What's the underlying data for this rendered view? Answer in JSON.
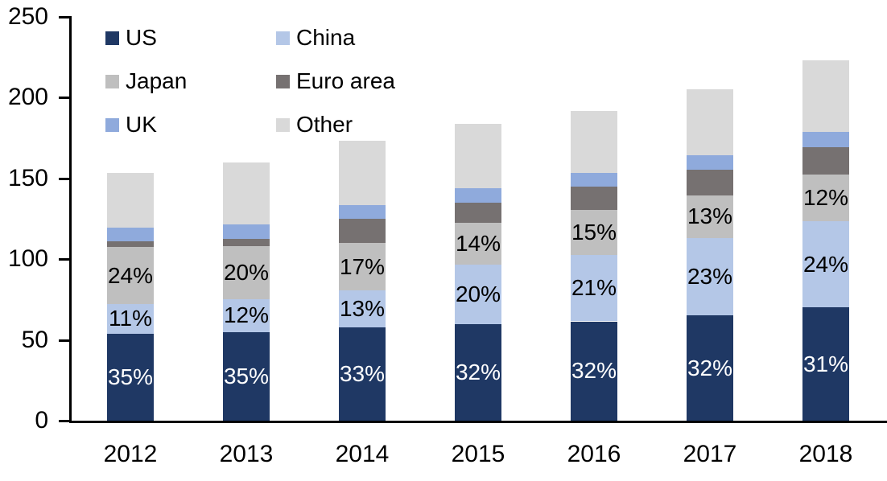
{
  "chart_data": {
    "type": "bar",
    "stacked": true,
    "title": "",
    "xlabel": "",
    "ylabel": "",
    "categories": [
      "2012",
      "2013",
      "2014",
      "2015",
      "2016",
      "2017",
      "2018"
    ],
    "series": [
      {
        "name": "US",
        "color": "#1f3864",
        "values": [
          54,
          55,
          58,
          60,
          61.5,
          65,
          70
        ],
        "labels": [
          "35%",
          "35%",
          "33%",
          "32%",
          "32%",
          "32%",
          "31%"
        ],
        "label_color": "#ffffff"
      },
      {
        "name": "China",
        "color": "#b4c7e7",
        "values": [
          18,
          20,
          22.5,
          36.5,
          41,
          48,
          53.5
        ],
        "labels": [
          "11%",
          "12%",
          "13%",
          "20%",
          "21%",
          "23%",
          "24%"
        ],
        "label_color": "#000000"
      },
      {
        "name": "Japan",
        "color": "#bfbfbf",
        "values": [
          35.5,
          33,
          29.5,
          26,
          28,
          26.5,
          29
        ],
        "labels": [
          "24%",
          "20%",
          "17%",
          "14%",
          "15%",
          "13%",
          "12%"
        ],
        "label_color": "#000000"
      },
      {
        "name": "Euro area",
        "color": "#767171",
        "values": [
          3.5,
          4.5,
          15,
          12.5,
          14.5,
          16,
          17
        ],
        "labels": null,
        "label_color": "#000000"
      },
      {
        "name": "UK",
        "color": "#8faadc",
        "values": [
          8.5,
          9,
          8.5,
          9,
          8.5,
          9,
          9.5
        ],
        "labels": null,
        "label_color": "#000000"
      },
      {
        "name": "Other",
        "color": "#d9d9d9",
        "values": [
          34,
          38.5,
          40,
          40,
          38,
          40.5,
          44
        ],
        "labels": null,
        "label_color": "#000000"
      }
    ],
    "totals": [
      153.5,
      160,
      173.5,
      184,
      191.5,
      205,
      223
    ],
    "ylim": [
      0,
      250
    ],
    "yticks": [
      0,
      50,
      100,
      150,
      200,
      250
    ],
    "grid": false,
    "legend": {
      "position": "top-left",
      "columns": 2,
      "entries": [
        "US",
        "China",
        "Japan",
        "Euro area",
        "UK",
        "Other"
      ]
    },
    "axis_color": "#000000"
  }
}
